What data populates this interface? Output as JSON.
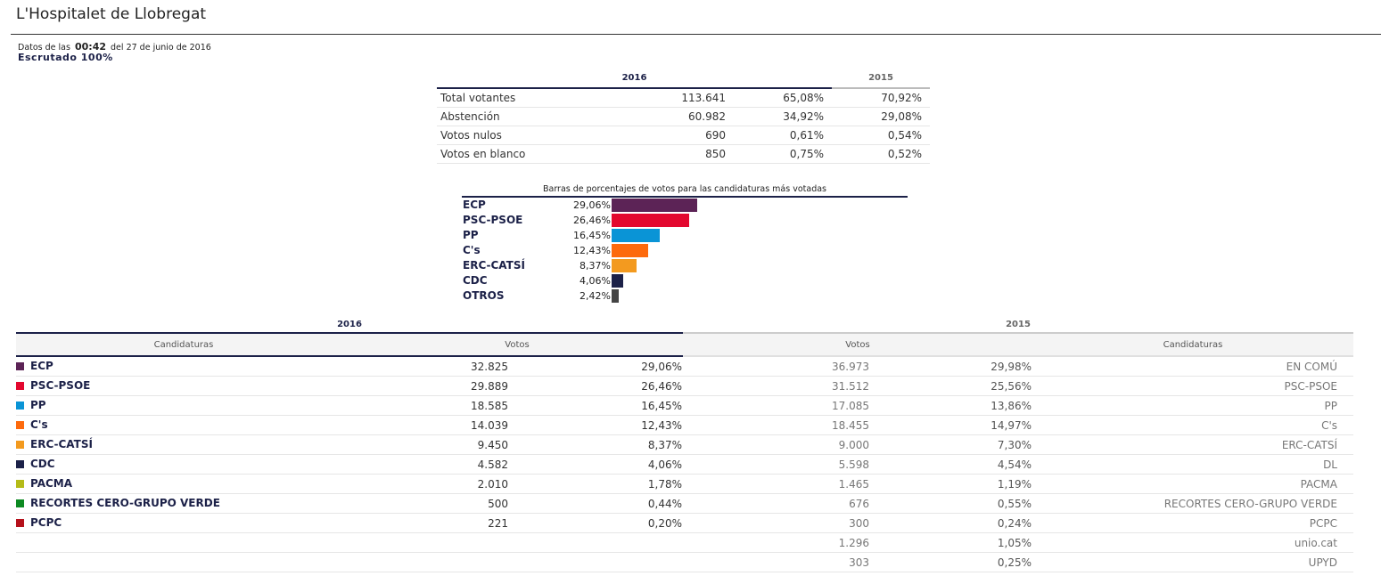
{
  "title": "L'Hospitalet de Llobregat",
  "meta": {
    "prefix": "Datos de las",
    "time": "00:42",
    "suffix": "del 27 de junio de 2016",
    "scrutiny": "Escrutado 100%"
  },
  "summary": {
    "year_current": "2016",
    "year_previous": "2015",
    "rows": [
      {
        "label": "Total votantes",
        "value": "113.641",
        "pct_2016": "65,08%",
        "pct_2015": "70,92%"
      },
      {
        "label": "Abstención",
        "value": "60.982",
        "pct_2016": "34,92%",
        "pct_2015": "29,08%"
      },
      {
        "label": "Votos nulos",
        "value": "690",
        "pct_2016": "0,61%",
        "pct_2015": "0,54%"
      },
      {
        "label": "Votos en blanco",
        "value": "850",
        "pct_2016": "0,75%",
        "pct_2015": "0,52%"
      }
    ]
  },
  "chart_data": {
    "type": "bar",
    "title": "Barras de porcentajes de votos para las candidaturas más votadas",
    "categories": [
      "ECP",
      "PSC-PSOE",
      "PP",
      "C's",
      "ERC-CATSÍ",
      "CDC",
      "OTROS"
    ],
    "values": [
      29.06,
      26.46,
      16.45,
      12.43,
      8.37,
      4.06,
      2.42
    ],
    "labels": [
      "29,06%",
      "26,46%",
      "16,45%",
      "12,43%",
      "8,37%",
      "4,06%",
      "2,42%"
    ],
    "colors": [
      "#5c2356",
      "#e3082f",
      "#0a94d6",
      "#fd6a0d",
      "#f39a1f",
      "#1c2148",
      "#444444"
    ],
    "orientation": "horizontal"
  },
  "results": {
    "year_current": "2016",
    "year_previous": "2015",
    "col_candidaturas": "Candidaturas",
    "col_votos": "Votos",
    "col_votos_prev": "Votos",
    "col_candidaturas_prev": "Candidaturas",
    "rows": [
      {
        "party": "ECP",
        "color": "#5c2356",
        "votes": "32.825",
        "pct": "29,06%",
        "votes_prev": "36.973",
        "pct_prev": "29,98%",
        "party_prev": "EN COMÚ"
      },
      {
        "party": "PSC-PSOE",
        "color": "#e3082f",
        "votes": "29.889",
        "pct": "26,46%",
        "votes_prev": "31.512",
        "pct_prev": "25,56%",
        "party_prev": "PSC-PSOE"
      },
      {
        "party": "PP",
        "color": "#0a94d6",
        "votes": "18.585",
        "pct": "16,45%",
        "votes_prev": "17.085",
        "pct_prev": "13,86%",
        "party_prev": "PP"
      },
      {
        "party": "C's",
        "color": "#fd6a0d",
        "votes": "14.039",
        "pct": "12,43%",
        "votes_prev": "18.455",
        "pct_prev": "14,97%",
        "party_prev": "C's"
      },
      {
        "party": "ERC-CATSÍ",
        "color": "#f39a1f",
        "votes": "9.450",
        "pct": "8,37%",
        "votes_prev": "9.000",
        "pct_prev": "7,30%",
        "party_prev": "ERC-CATSÍ"
      },
      {
        "party": "CDC",
        "color": "#1c2148",
        "votes": "4.582",
        "pct": "4,06%",
        "votes_prev": "5.598",
        "pct_prev": "4,54%",
        "party_prev": "DL"
      },
      {
        "party": "PACMA",
        "color": "#b4bb18",
        "votes": "2.010",
        "pct": "1,78%",
        "votes_prev": "1.465",
        "pct_prev": "1,19%",
        "party_prev": "PACMA"
      },
      {
        "party": "RECORTES CERO-GRUPO VERDE",
        "color": "#0d8a22",
        "votes": "500",
        "pct": "0,44%",
        "votes_prev": "676",
        "pct_prev": "0,55%",
        "party_prev": "RECORTES CERO-GRUPO VERDE"
      },
      {
        "party": "PCPC",
        "color": "#b5111b",
        "votes": "221",
        "pct": "0,20%",
        "votes_prev": "300",
        "pct_prev": "0,24%",
        "party_prev": "PCPC"
      },
      {
        "party": "",
        "color": "",
        "votes": "",
        "pct": "",
        "votes_prev": "1.296",
        "pct_prev": "1,05%",
        "party_prev": "unio.cat"
      },
      {
        "party": "",
        "color": "",
        "votes": "",
        "pct": "",
        "votes_prev": "303",
        "pct_prev": "0,25%",
        "party_prev": "UPYD"
      }
    ]
  }
}
